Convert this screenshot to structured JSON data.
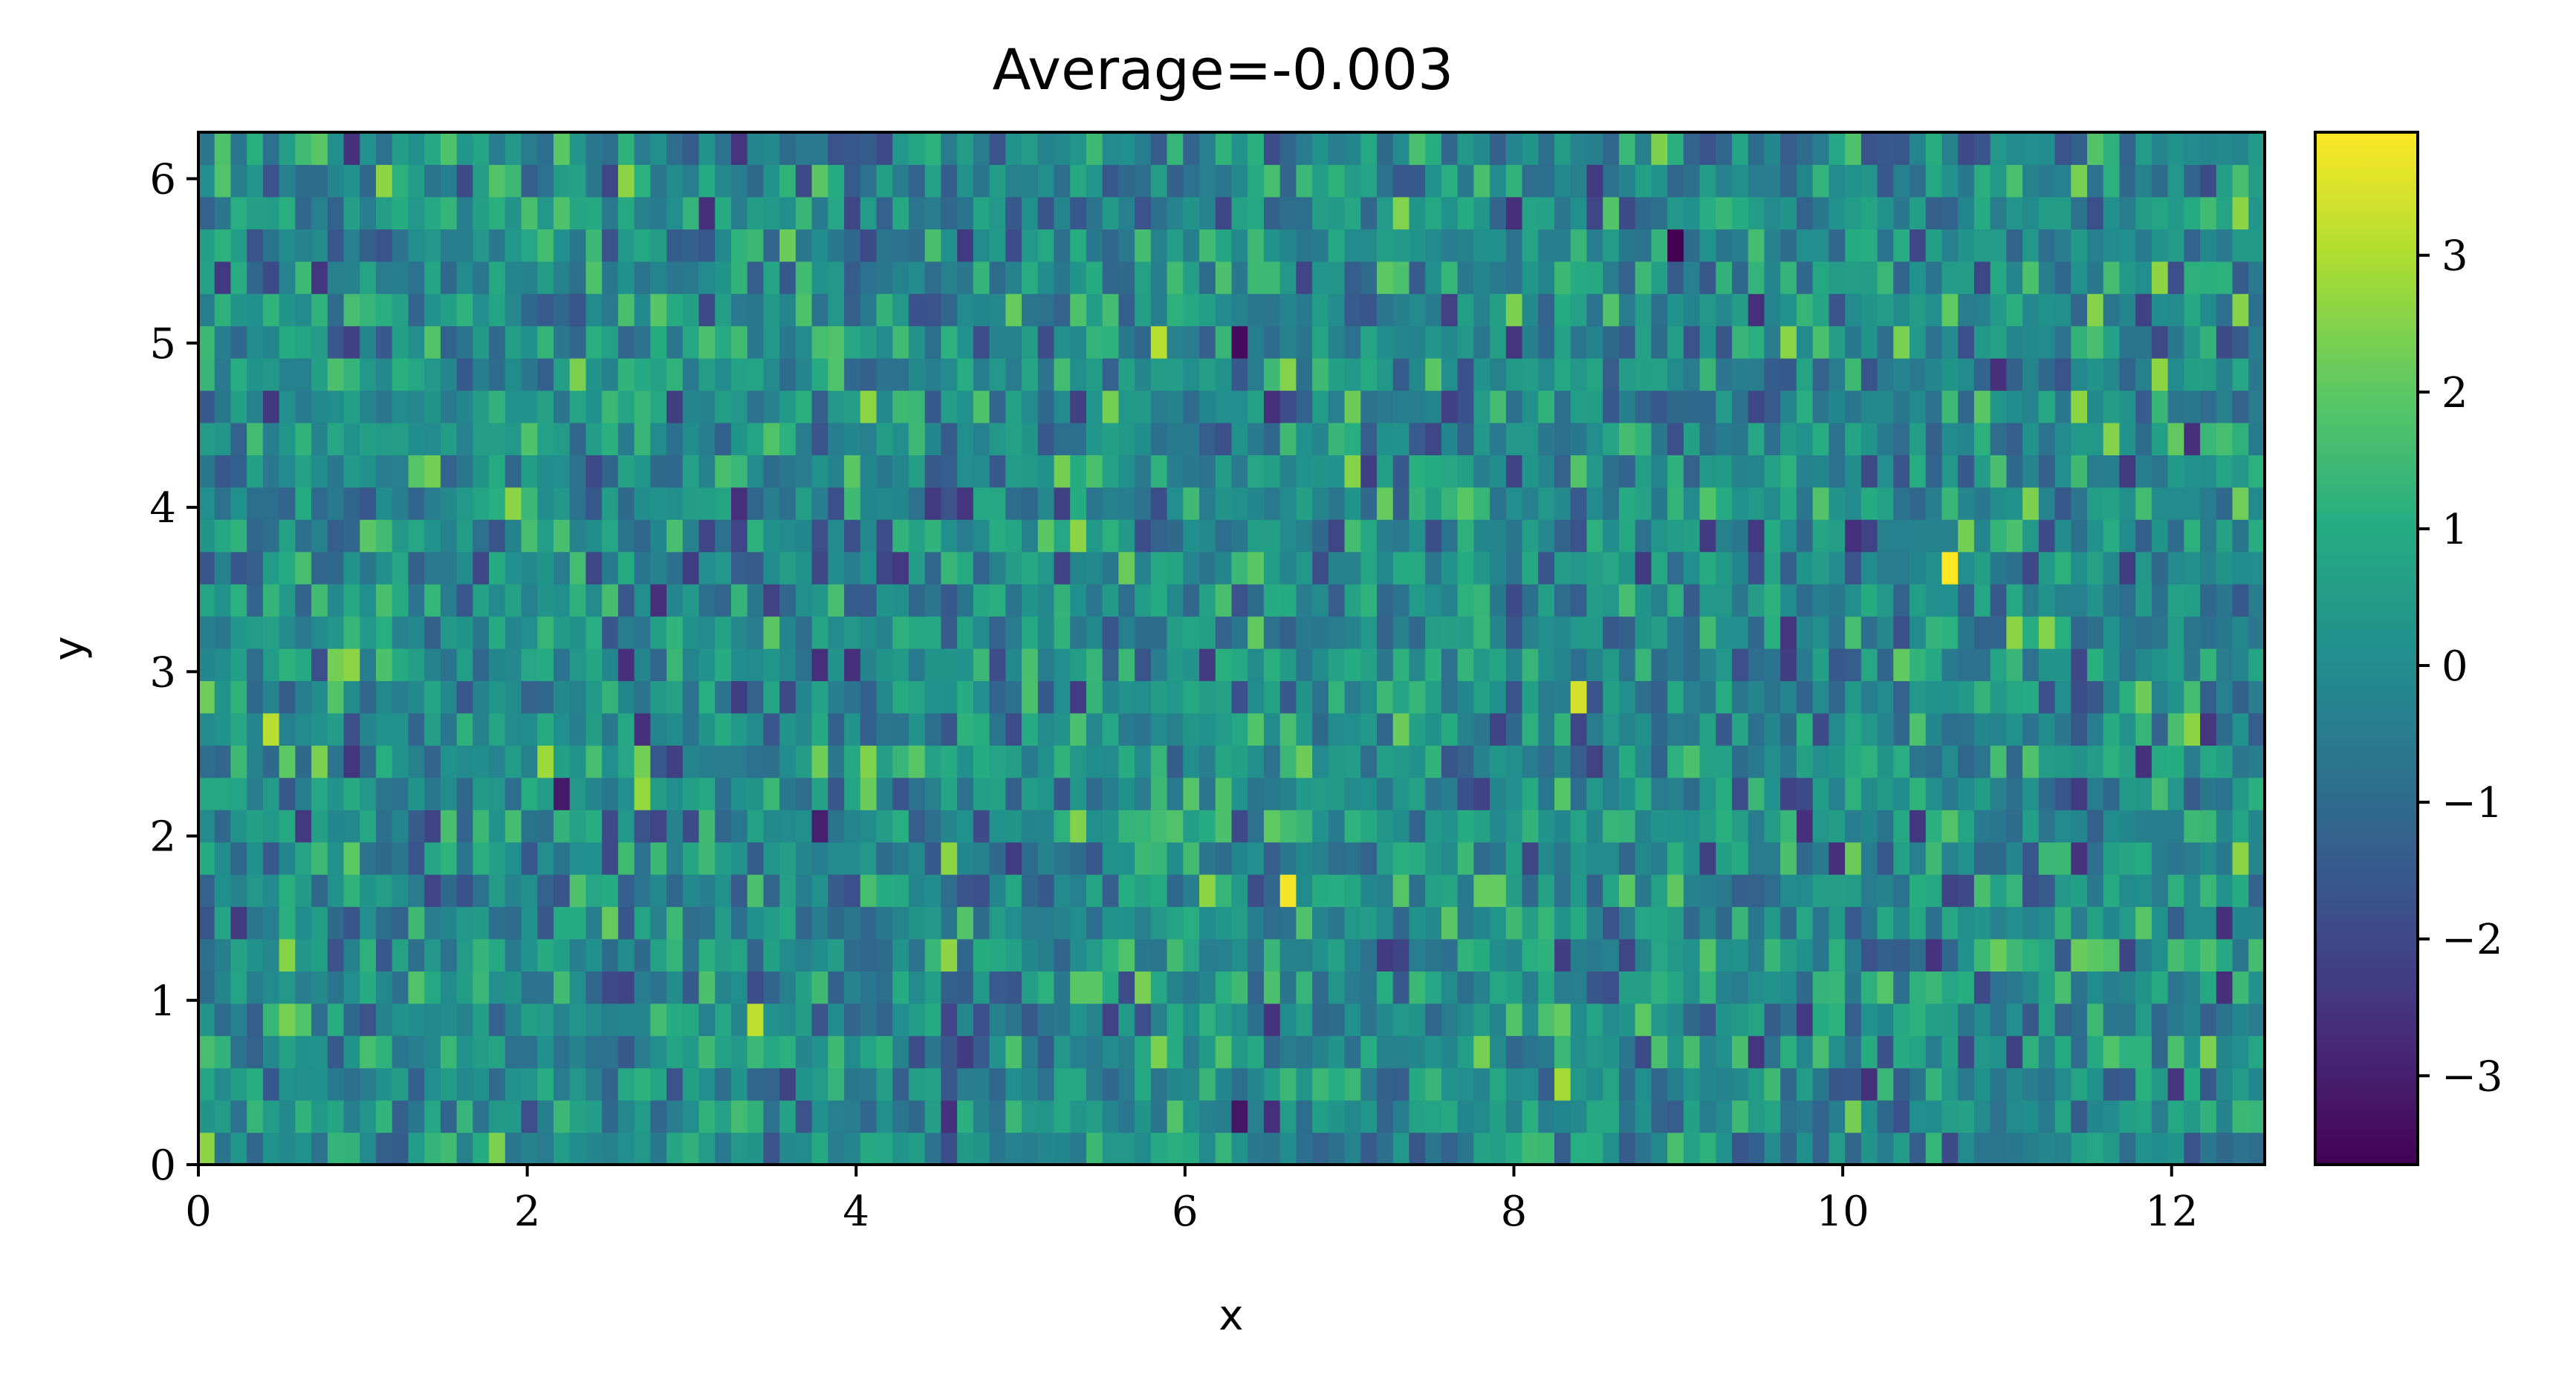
{
  "chart_data": {
    "type": "heatmap",
    "title": "Average=-0.003",
    "xlabel": "x",
    "ylabel": "y",
    "xlim": [
      0,
      12.566
    ],
    "ylim": [
      0,
      6.283
    ],
    "x_ticks": [
      0,
      2,
      4,
      6,
      8,
      10,
      12
    ],
    "x_tick_labels": [
      "0",
      "2",
      "4",
      "6",
      "8",
      "10",
      "12"
    ],
    "y_ticks": [
      0,
      1,
      2,
      3,
      4,
      5,
      6
    ],
    "y_tick_labels": [
      "0",
      "1",
      "2",
      "3",
      "4",
      "5",
      "6"
    ],
    "grid_cols": 128,
    "grid_rows": 32,
    "average": -0.003,
    "colormap": "viridis",
    "colorbar": {
      "vmin": -3.65,
      "vmax": 3.9,
      "ticks": [
        -3,
        -2,
        -1,
        0,
        1,
        2,
        3
      ],
      "tick_labels": [
        "−3",
        "−2",
        "−1",
        "0",
        "1",
        "2",
        "3"
      ]
    },
    "notable_cells": [
      {
        "x": 0.44,
        "y": 2.68,
        "value": 3.1
      },
      {
        "x": 0.93,
        "y": 3.08,
        "value": 2.6
      },
      {
        "x": 1.81,
        "y": 0.1,
        "value": 2.4
      },
      {
        "x": 2.11,
        "y": 2.49,
        "value": 2.8
      },
      {
        "x": 2.21,
        "y": 2.29,
        "value": -3.1
      },
      {
        "x": 2.7,
        "y": 2.29,
        "value": 2.7
      },
      {
        "x": 3.39,
        "y": 0.9,
        "value": 3.2
      },
      {
        "x": 3.78,
        "y": 2.1,
        "value": -3.0
      },
      {
        "x": 5.84,
        "y": 5.08,
        "value": 3.1
      },
      {
        "x": 6.33,
        "y": 5.08,
        "value": -3.4
      },
      {
        "x": 6.33,
        "y": 0.3,
        "value": -3.2
      },
      {
        "x": 6.62,
        "y": 1.69,
        "value": 3.8
      },
      {
        "x": 7.26,
        "y": 5.49,
        "value": 2.0
      },
      {
        "x": 8.26,
        "y": 0.5,
        "value": 2.9
      },
      {
        "x": 8.39,
        "y": 2.88,
        "value": 3.4
      },
      {
        "x": 8.98,
        "y": 5.68,
        "value": -3.65
      },
      {
        "x": 10.65,
        "y": 3.68,
        "value": 3.9
      },
      {
        "x": 11.0,
        "y": 3.29,
        "value": 2.6
      },
      {
        "x": 11.2,
        "y": 3.29,
        "value": 2.5
      },
      {
        "x": 11.89,
        "y": 4.89,
        "value": 2.6
      }
    ]
  }
}
